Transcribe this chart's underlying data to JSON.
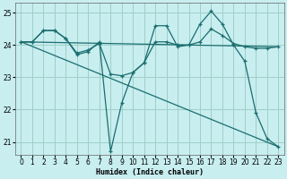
{
  "bg_color": "#c8eef0",
  "grid_color": "#a0cfc8",
  "line_color": "#1a6e6e",
  "xlabel": "Humidex (Indice chaleur)",
  "xlim": [
    -0.5,
    23.5
  ],
  "ylim": [
    20.6,
    25.3
  ],
  "yticks": [
    21,
    22,
    23,
    24,
    25
  ],
  "xticks": [
    0,
    1,
    2,
    3,
    4,
    5,
    6,
    7,
    8,
    9,
    10,
    11,
    12,
    13,
    14,
    15,
    16,
    17,
    18,
    19,
    20,
    21,
    22,
    23
  ],
  "series1": {
    "x": [
      0,
      1,
      2,
      3,
      4,
      5,
      6,
      7,
      8,
      9,
      10,
      11,
      12,
      13,
      14,
      15,
      16,
      17,
      18,
      19,
      20,
      21,
      22,
      23
    ],
    "y": [
      24.1,
      24.1,
      24.45,
      24.45,
      24.2,
      23.7,
      23.8,
      24.1,
      20.7,
      22.2,
      23.15,
      23.45,
      24.6,
      24.6,
      23.95,
      24.0,
      24.65,
      25.05,
      24.65,
      24.0,
      23.5,
      21.9,
      21.1,
      20.85
    ]
  },
  "series2": {
    "x": [
      0,
      1,
      2,
      3,
      4,
      5,
      6,
      7,
      8,
      9,
      10,
      11,
      12,
      13,
      14,
      15,
      16,
      17,
      18,
      19,
      20,
      21,
      22,
      23
    ],
    "y": [
      24.1,
      24.1,
      24.45,
      24.45,
      24.2,
      23.75,
      23.85,
      24.05,
      23.1,
      23.05,
      23.15,
      23.45,
      24.1,
      24.1,
      24.0,
      24.0,
      24.1,
      24.5,
      24.3,
      24.05,
      23.95,
      23.9,
      23.9,
      23.95
    ]
  },
  "line1": {
    "x": [
      0,
      23
    ],
    "y": [
      24.1,
      23.95
    ]
  },
  "line2": {
    "x": [
      0,
      23
    ],
    "y": [
      24.1,
      20.85
    ]
  }
}
